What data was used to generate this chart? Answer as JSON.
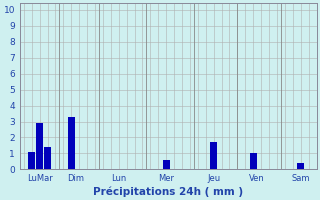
{
  "bar_positions": [
    1,
    2,
    3,
    6,
    7,
    12,
    13,
    18,
    19,
    24,
    29,
    30,
    35
  ],
  "bar_values": [
    1.1,
    2.9,
    1.4,
    3.3,
    0.0,
    0.0,
    0.0,
    0.6,
    0.0,
    1.7,
    1.0,
    0.0,
    0.4
  ],
  "bar_color": "#0000bb",
  "background_color": "#cff0f0",
  "grid_color_major": "#b0b0b0",
  "grid_color_minor": "#cccccc",
  "axis_color": "#2244aa",
  "xlabel": "Précipitations 24h ( mm )",
  "xlabel_fontsize": 7.5,
  "ytick_labels": [
    "0",
    "1",
    "2",
    "3",
    "4",
    "5",
    "6",
    "7",
    "8",
    "9",
    "10"
  ],
  "ytick_values": [
    0,
    1,
    2,
    3,
    4,
    5,
    6,
    7,
    8,
    9,
    10
  ],
  "ylim": [
    0,
    10.4
  ],
  "xlim": [
    -0.5,
    37
  ],
  "bar_width": 0.85,
  "group_tick_positions": [
    2,
    6.5,
    12,
    18,
    24,
    29.5,
    35
  ],
  "group_tick_labels": [
    "LuMar",
    "Dim",
    "Lun",
    "Mer",
    "Jeu",
    "Ven",
    "Sam"
  ],
  "ytick_fontsize": 6.5,
  "xtick_fontsize": 6.0,
  "divider_positions": [
    4.5,
    9.5,
    15.5,
    21.5,
    27,
    32.5
  ],
  "n_xcells": 37,
  "n_ycells": 10
}
